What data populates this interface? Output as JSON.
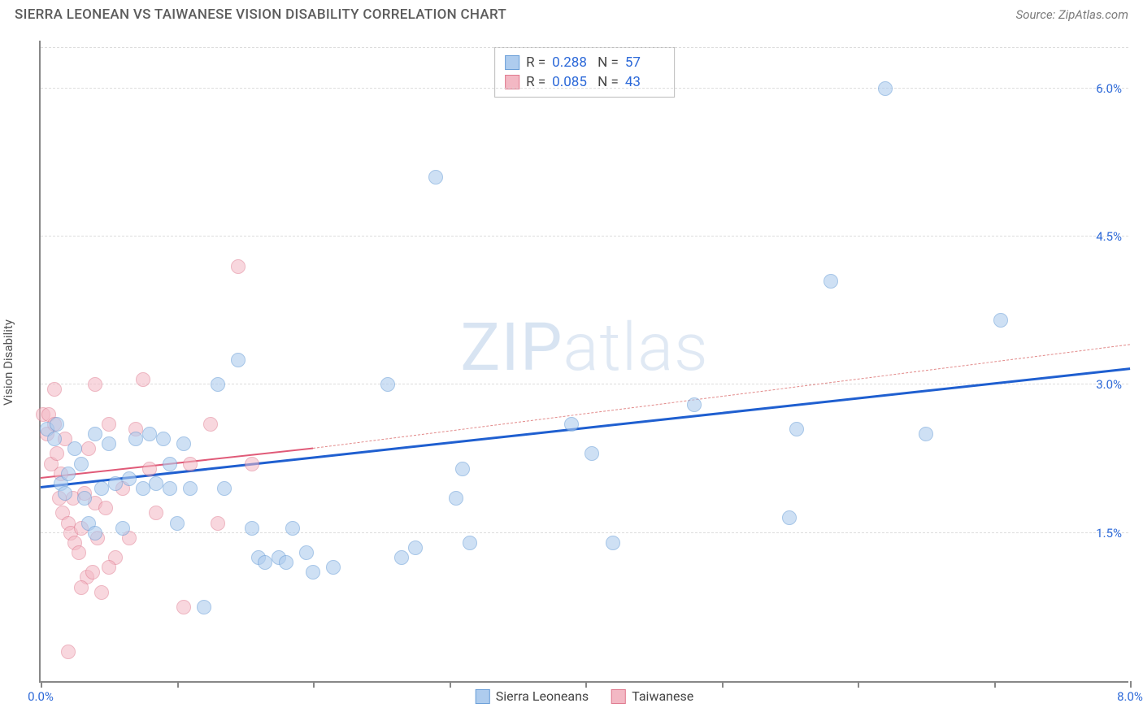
{
  "title": "SIERRA LEONEAN VS TAIWANESE VISION DISABILITY CORRELATION CHART",
  "source": "Source: ZipAtlas.com",
  "ylabel": "Vision Disability",
  "watermark_bold": "ZIP",
  "watermark_thin": "atlas",
  "chart": {
    "type": "scatter",
    "xlim": [
      0,
      8.0
    ],
    "ylim": [
      0,
      6.5
    ],
    "x_tick_positions": [
      0,
      1,
      2,
      3,
      4,
      5,
      6,
      7,
      8
    ],
    "x_tick_labels_shown": {
      "0": "0.0%",
      "8": "8.0%"
    },
    "y_gridlines": [
      1.5,
      3.0,
      4.5,
      6.0
    ],
    "y_tick_labels": {
      "1.5": "1.5%",
      "3.0": "3.0%",
      "4.5": "4.5%",
      "6.0": "6.0%"
    },
    "grid_color": "#dddddd",
    "axis_color": "#888888",
    "background_color": "#ffffff",
    "marker_radius": 9,
    "series": [
      {
        "name": "Sierra Leoneans",
        "color_fill": "#aeccee",
        "color_stroke": "#6b9fd8",
        "fill_opacity": 0.6,
        "R": "0.288",
        "N": "57",
        "regression": {
          "x1": 0,
          "y1": 1.95,
          "x2": 8.0,
          "y2": 3.15,
          "color": "#1f5fd0",
          "width": 3,
          "dash": "solid"
        },
        "regression_ext": {
          "x1": 2.0,
          "y1": 2.35,
          "x2": 8.0,
          "y2": 3.4,
          "color": "#e28a8a",
          "width": 1,
          "dash": "4 4"
        },
        "points": [
          [
            0.05,
            2.55
          ],
          [
            0.1,
            2.45
          ],
          [
            0.12,
            2.6
          ],
          [
            0.15,
            2.0
          ],
          [
            0.18,
            1.9
          ],
          [
            0.2,
            2.1
          ],
          [
            0.25,
            2.35
          ],
          [
            0.3,
            2.2
          ],
          [
            0.32,
            1.85
          ],
          [
            0.35,
            1.6
          ],
          [
            0.4,
            2.5
          ],
          [
            0.45,
            1.95
          ],
          [
            0.5,
            2.4
          ],
          [
            0.55,
            2.0
          ],
          [
            0.6,
            1.55
          ],
          [
            0.65,
            2.05
          ],
          [
            0.7,
            2.45
          ],
          [
            0.75,
            1.95
          ],
          [
            0.8,
            2.5
          ],
          [
            0.85,
            2.0
          ],
          [
            0.9,
            2.45
          ],
          [
            0.95,
            1.95
          ],
          [
            1.0,
            1.6
          ],
          [
            1.05,
            2.4
          ],
          [
            1.1,
            1.95
          ],
          [
            1.2,
            0.75
          ],
          [
            1.3,
            3.0
          ],
          [
            1.35,
            1.95
          ],
          [
            1.45,
            3.25
          ],
          [
            1.55,
            1.55
          ],
          [
            1.6,
            1.25
          ],
          [
            1.65,
            1.2
          ],
          [
            1.75,
            1.25
          ],
          [
            1.8,
            1.2
          ],
          [
            1.85,
            1.55
          ],
          [
            1.95,
            1.3
          ],
          [
            2.0,
            1.1
          ],
          [
            2.15,
            1.15
          ],
          [
            2.55,
            3.0
          ],
          [
            2.65,
            1.25
          ],
          [
            2.75,
            1.35
          ],
          [
            2.9,
            5.1
          ],
          [
            3.05,
            1.85
          ],
          [
            3.1,
            2.15
          ],
          [
            3.15,
            1.4
          ],
          [
            3.9,
            2.6
          ],
          [
            4.05,
            2.3
          ],
          [
            4.2,
            1.4
          ],
          [
            4.8,
            2.8
          ],
          [
            5.5,
            1.65
          ],
          [
            5.55,
            2.55
          ],
          [
            6.2,
            6.0
          ],
          [
            6.5,
            2.5
          ],
          [
            7.05,
            3.65
          ],
          [
            5.8,
            4.05
          ],
          [
            0.95,
            2.2
          ],
          [
            0.4,
            1.5
          ]
        ]
      },
      {
        "name": "Taiwanese",
        "color_fill": "#f3b8c4",
        "color_stroke": "#e07a8f",
        "fill_opacity": 0.55,
        "R": "0.085",
        "N": "43",
        "regression": {
          "x1": 0,
          "y1": 2.05,
          "x2": 2.0,
          "y2": 2.35,
          "color": "#e05a78",
          "width": 2.5,
          "dash": "solid"
        },
        "points": [
          [
            0.02,
            2.7
          ],
          [
            0.05,
            2.5
          ],
          [
            0.06,
            2.7
          ],
          [
            0.08,
            2.2
          ],
          [
            0.1,
            2.6
          ],
          [
            0.12,
            2.3
          ],
          [
            0.14,
            1.85
          ],
          [
            0.15,
            2.1
          ],
          [
            0.16,
            1.7
          ],
          [
            0.18,
            2.45
          ],
          [
            0.2,
            1.6
          ],
          [
            0.22,
            1.5
          ],
          [
            0.24,
            1.85
          ],
          [
            0.25,
            1.4
          ],
          [
            0.28,
            1.3
          ],
          [
            0.3,
            1.55
          ],
          [
            0.32,
            1.9
          ],
          [
            0.34,
            1.05
          ],
          [
            0.35,
            2.35
          ],
          [
            0.38,
            1.1
          ],
          [
            0.4,
            1.8
          ],
          [
            0.42,
            1.45
          ],
          [
            0.45,
            0.9
          ],
          [
            0.48,
            1.75
          ],
          [
            0.5,
            2.6
          ],
          [
            0.2,
            0.3
          ],
          [
            0.55,
            1.25
          ],
          [
            0.6,
            1.95
          ],
          [
            0.65,
            1.45
          ],
          [
            0.7,
            2.55
          ],
          [
            0.3,
            0.95
          ],
          [
            0.8,
            2.15
          ],
          [
            0.85,
            1.7
          ],
          [
            0.4,
            3.0
          ],
          [
            0.5,
            1.15
          ],
          [
            1.05,
            0.75
          ],
          [
            1.1,
            2.2
          ],
          [
            1.25,
            2.6
          ],
          [
            1.3,
            1.6
          ],
          [
            1.45,
            4.2
          ],
          [
            1.55,
            2.2
          ],
          [
            0.75,
            3.05
          ],
          [
            0.1,
            2.95
          ]
        ]
      }
    ]
  },
  "legend": {
    "series1_label": "Sierra Leoneans",
    "series2_label": "Taiwanese"
  },
  "stats_labels": {
    "R": "R  =",
    "N": "N  ="
  }
}
